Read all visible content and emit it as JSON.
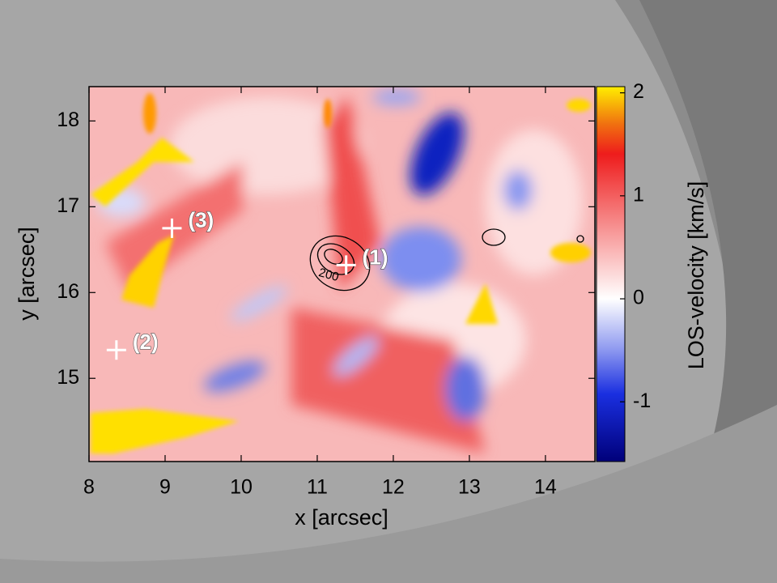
{
  "chart_data": {
    "type": "heatmap",
    "xlabel": "x [arcsec]",
    "ylabel": "y [arcsec]",
    "xlim": [
      8,
      14.65
    ],
    "ylim": [
      14.03,
      18.4
    ],
    "xticks": [
      8,
      9,
      10,
      11,
      12,
      13,
      14
    ],
    "yticks": [
      15,
      16,
      17,
      18
    ],
    "colorbar_label": "LOS-velocity [km/s]",
    "zlim": [
      -1.58,
      2.06
    ],
    "zticks": [
      -1,
      0,
      1,
      2
    ],
    "markers": [
      {
        "label": "(1)",
        "x": 11.38,
        "y": 16.32
      },
      {
        "label": "(2)",
        "x": 8.36,
        "y": 15.33
      },
      {
        "label": "(3)",
        "x": 9.09,
        "y": 16.75
      }
    ],
    "contour_label": {
      "text": "200",
      "x": 11.15,
      "y": 16.2
    }
  }
}
